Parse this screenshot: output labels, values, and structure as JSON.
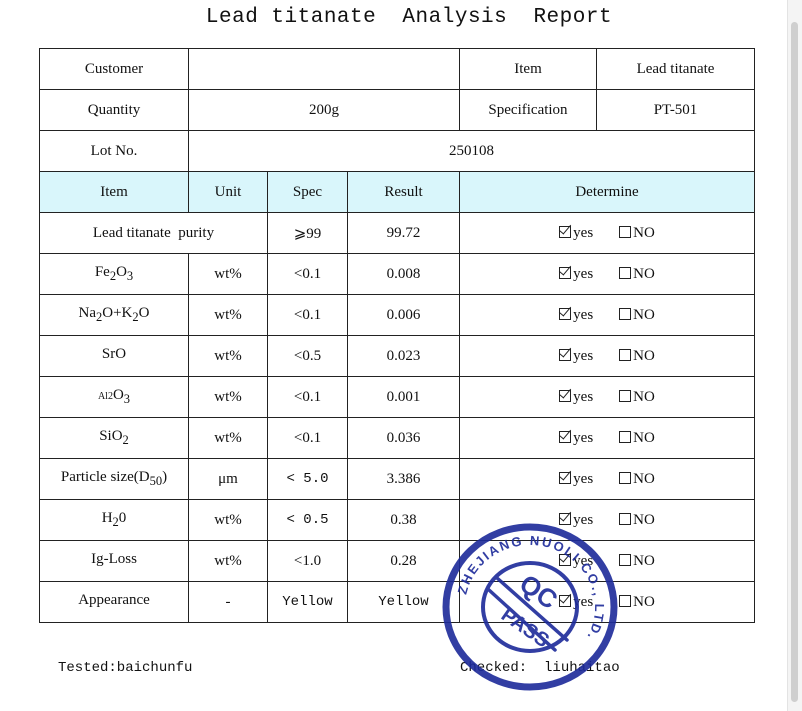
{
  "title": "Lead titanate  Analysis  Report",
  "info": {
    "customer_label": "Customer",
    "customer_value": "",
    "item_label": "Item",
    "item_value": "Lead titanate",
    "quantity_label": "Quantity",
    "quantity_value": "200g",
    "spec_label": "Specification",
    "spec_value": "PT-501",
    "lot_label": "Lot No.",
    "lot_value": "250108"
  },
  "headers": {
    "item": "Item",
    "unit": "Unit",
    "spec": "Spec",
    "result": "Result",
    "determine": "Determine"
  },
  "determine": {
    "yes": "yes",
    "no": "NO"
  },
  "purity": {
    "item": "Lead titanate  purity",
    "spec": "⩾99",
    "result": "99.72"
  },
  "rows": [
    {
      "item_main": "Fe",
      "item_sub1": "2",
      "item_mid": "O",
      "item_sub2": "3",
      "item_tail": "",
      "unit": "wt%",
      "spec": "<0.1",
      "result": "0.008"
    },
    {
      "item_main": "Na",
      "item_sub1": "2",
      "item_mid": "O+K",
      "item_sub2": "2",
      "item_tail": "O",
      "unit": "wt%",
      "spec": "<0.1",
      "result": "0.006"
    },
    {
      "item_main": "SrO",
      "item_sub1": "",
      "item_mid": "",
      "item_sub2": "",
      "item_tail": "",
      "unit": "wt%",
      "spec": "<0.5",
      "result": "0.023"
    },
    {
      "item_main": "Al2",
      "item_sub1": "",
      "item_mid": "O",
      "item_sub2": "3",
      "item_tail": "",
      "unit": "wt%",
      "spec": "<0.1",
      "result": "0.001"
    },
    {
      "item_main": "SiO",
      "item_sub1": "2",
      "item_mid": "",
      "item_sub2": "",
      "item_tail": "",
      "unit": "wt%",
      "spec": "<0.1",
      "result": "0.036"
    },
    {
      "item_main": "Particle size(D",
      "item_sub1": "50",
      "item_mid": ")",
      "item_sub2": "",
      "item_tail": "",
      "unit": "μm",
      "spec": "< 5.0",
      "result": "3.386"
    },
    {
      "item_main": "H",
      "item_sub1": "2",
      "item_mid": "0",
      "item_sub2": "",
      "item_tail": "",
      "unit": "wt%",
      "spec": "< 0.5",
      "result": "0.38"
    },
    {
      "item_main": "Ig-Loss",
      "item_sub1": "",
      "item_mid": "",
      "item_sub2": "",
      "item_tail": "",
      "unit": "wt%",
      "spec": "<1.0",
      "result": "0.28"
    },
    {
      "item_main": "Appearance",
      "item_sub1": "",
      "item_mid": "",
      "item_sub2": "",
      "item_tail": "",
      "unit": "-",
      "spec": "Yellow",
      "result": "Yellow"
    }
  ],
  "footer": {
    "tested": "Tested:baichunfu",
    "checked": "Checked:  liuhaitao"
  },
  "stamp": {
    "center_top": "QC",
    "center_bottom": "PASS",
    "ring_text": "ZHEJIANG NUOLI CO., LTD.",
    "color": "#1c2a9a"
  }
}
